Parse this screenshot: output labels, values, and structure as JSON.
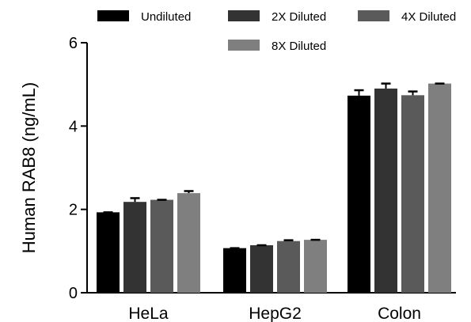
{
  "chart_data": {
    "type": "bar",
    "title": "",
    "xlabel": "",
    "ylabel": "Human RAB8 (ng/mL)",
    "ylim": [
      0,
      6
    ],
    "yticks": [
      "0",
      "2",
      "4",
      "6"
    ],
    "grid": false,
    "legend_position": "top",
    "categories": [
      "HeLa",
      "HepG2",
      "Colon"
    ],
    "series": [
      {
        "name": "Undiluted",
        "color": "#000000",
        "values": [
          1.93,
          1.07,
          4.73
        ],
        "errors": [
          0.0,
          0.0,
          0.13
        ]
      },
      {
        "name": "2X Diluted",
        "color": "#333333",
        "values": [
          2.18,
          1.14,
          4.9
        ],
        "errors": [
          0.09,
          0.0,
          0.12
        ]
      },
      {
        "name": "4X Diluted",
        "color": "#5a5a5a",
        "values": [
          2.23,
          1.24,
          4.74
        ],
        "errors": [
          0.0,
          0.02,
          0.09
        ]
      },
      {
        "name": "8X Diluted",
        "color": "#7f7f7f",
        "values": [
          2.39,
          1.27,
          5.02
        ],
        "errors": [
          0.05,
          0.0,
          0.0
        ]
      }
    ]
  }
}
